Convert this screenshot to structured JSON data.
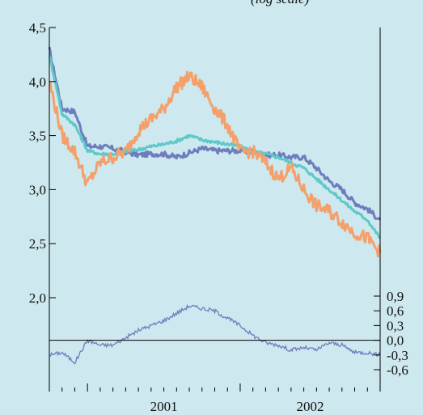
{
  "header_fragment": "(log scale)",
  "colors": {
    "background": "#cde8ee",
    "series_a": "#6d7dbd",
    "series_b": "#5fc8c8",
    "series_c": "#f5a06b",
    "spread": "#6d7dbd",
    "axis": "#000000"
  },
  "chart_data": [
    {
      "type": "line",
      "x_tick_labels": [
        "2001",
        "2002"
      ],
      "y_tick_labels": [
        "4,5",
        "4,0",
        "3,5",
        "3,0",
        "2,5",
        "2,0"
      ],
      "ylim": [
        2.0,
        4.5
      ],
      "grid": false,
      "x_dates": [
        "2000-10",
        "2000-11",
        "2000-12",
        "2001-01",
        "2001-02",
        "2001-03",
        "2001-04",
        "2001-05",
        "2001-06",
        "2001-07",
        "2001-08",
        "2001-09",
        "2001-10",
        "2001-11",
        "2001-12",
        "2002-01",
        "2002-02",
        "2002-03",
        "2002-04",
        "2002-05",
        "2002-06",
        "2002-07",
        "2002-08",
        "2002-09",
        "2002-10",
        "2002-11",
        "2002-12"
      ],
      "series": [
        {
          "color": "series_a",
          "values": [
            4.3,
            3.75,
            3.72,
            3.4,
            3.4,
            3.38,
            3.35,
            3.32,
            3.33,
            3.33,
            3.3,
            3.34,
            3.38,
            3.36,
            3.36,
            3.36,
            3.35,
            3.32,
            3.32,
            3.3,
            3.3,
            3.2,
            3.08,
            3.0,
            2.88,
            2.82,
            2.72
          ]
        },
        {
          "color": "series_b",
          "values": [
            4.25,
            3.7,
            3.6,
            3.36,
            3.33,
            3.33,
            3.35,
            3.37,
            3.4,
            3.42,
            3.45,
            3.5,
            3.46,
            3.44,
            3.42,
            3.4,
            3.35,
            3.33,
            3.3,
            3.25,
            3.2,
            3.1,
            3.0,
            2.9,
            2.8,
            2.72,
            2.55
          ]
        },
        {
          "color": "series_c",
          "values": [
            4.0,
            3.5,
            3.35,
            3.05,
            3.25,
            3.3,
            3.35,
            3.55,
            3.65,
            3.75,
            3.95,
            4.05,
            3.95,
            3.75,
            3.6,
            3.35,
            3.35,
            3.25,
            3.1,
            3.2,
            3.0,
            2.85,
            2.8,
            2.7,
            2.6,
            2.55,
            2.42
          ]
        }
      ]
    },
    {
      "type": "line",
      "y_tick_labels": [
        "0,9",
        "0,6",
        "0,3",
        "0,0",
        "-0,3",
        "-0,6"
      ],
      "ylim": [
        -0.6,
        0.9
      ],
      "grid": false,
      "x_dates": [
        "2000-10",
        "2000-11",
        "2000-12",
        "2001-01",
        "2001-02",
        "2001-03",
        "2001-04",
        "2001-05",
        "2001-06",
        "2001-07",
        "2001-08",
        "2001-09",
        "2001-10",
        "2001-11",
        "2001-12",
        "2002-01",
        "2002-02",
        "2002-03",
        "2002-04",
        "2002-05",
        "2002-06",
        "2002-07",
        "2002-08",
        "2002-09",
        "2002-10",
        "2002-11",
        "2002-12"
      ],
      "series": [
        {
          "color": "spread",
          "values": [
            -0.3,
            -0.25,
            -0.45,
            0.0,
            -0.1,
            -0.1,
            0.05,
            0.2,
            0.3,
            0.4,
            0.55,
            0.7,
            0.65,
            0.6,
            0.45,
            0.3,
            0.1,
            -0.05,
            -0.1,
            -0.2,
            -0.15,
            -0.2,
            -0.05,
            -0.1,
            -0.25,
            -0.25,
            -0.3
          ]
        }
      ]
    }
  ]
}
